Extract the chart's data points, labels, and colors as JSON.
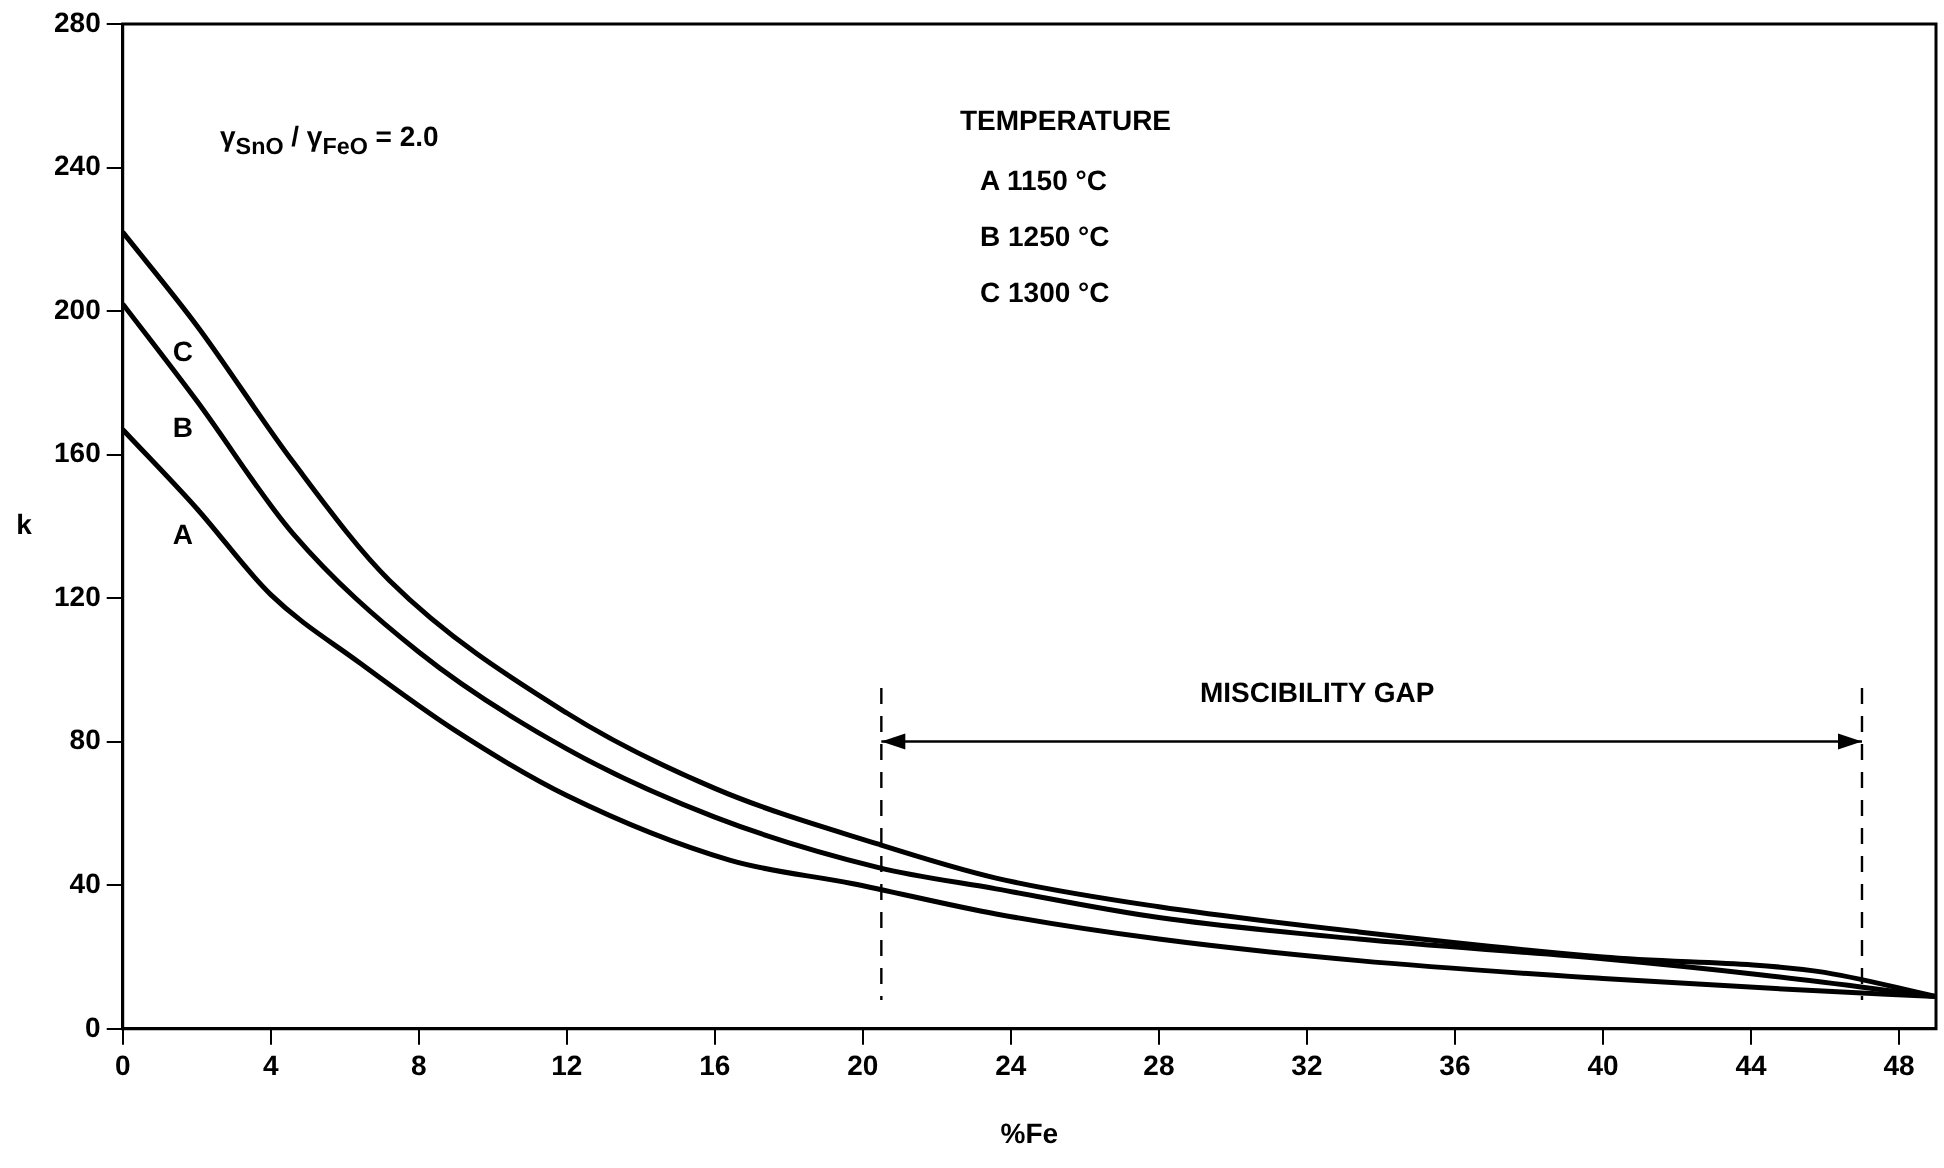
{
  "chart_data": {
    "type": "line",
    "xlabel": "%Fe",
    "ylabel": "k",
    "xlim": [
      0,
      49
    ],
    "xticks": [
      0,
      4,
      8,
      12,
      16,
      20,
      24,
      28,
      32,
      36,
      40,
      44,
      48
    ],
    "ylim": [
      0,
      280
    ],
    "yticks": [
      0,
      40,
      80,
      120,
      160,
      200,
      240,
      280
    ],
    "grid": false,
    "legend": false,
    "marker": "none",
    "line_style": "solid",
    "series": [
      {
        "name": "A",
        "color": "#000000",
        "x": [
          0,
          2,
          4,
          6.4,
          9,
          12,
          16.4,
          19.7,
          23.6,
          28,
          33.4,
          40,
          45,
          49
        ],
        "values": [
          167,
          145,
          121,
          102,
          83,
          65,
          47,
          40.5,
          32,
          25,
          19,
          14,
          11,
          9
        ]
      },
      {
        "name": "B",
        "color": "#000000",
        "x": [
          0,
          2,
          4.6,
          8,
          12,
          16,
          20.4,
          23.6,
          28,
          33.4,
          40,
          44.3,
          49
        ],
        "values": [
          202,
          175,
          138,
          105,
          78,
          59,
          45,
          39,
          31,
          25,
          19.5,
          15,
          9
        ]
      },
      {
        "name": "C",
        "color": "#000000",
        "x": [
          0,
          2,
          4.6,
          7.2,
          12,
          16,
          20.4,
          23.6,
          28,
          33.4,
          40,
          45.8,
          49
        ],
        "values": [
          222,
          196,
          158,
          125,
          88,
          67,
          51.5,
          42,
          34,
          27,
          20,
          16,
          9
        ]
      }
    ],
    "ref_lines": [
      {
        "axis": "x",
        "value": 20.5,
        "line_style": "dashed",
        "color": "#000000"
      },
      {
        "axis": "x",
        "value": 47,
        "line_style": "dashed",
        "color": "#000000"
      }
    ],
    "annotations": [
      "γ$_{SnO}$ / γ$_{FeO}$ = 2.0",
      "TEMPERATURE",
      "A   1150 °C",
      "B   1250 °C",
      "C   1300 °C",
      "MISCIBILITY GAP"
    ]
  }
}
